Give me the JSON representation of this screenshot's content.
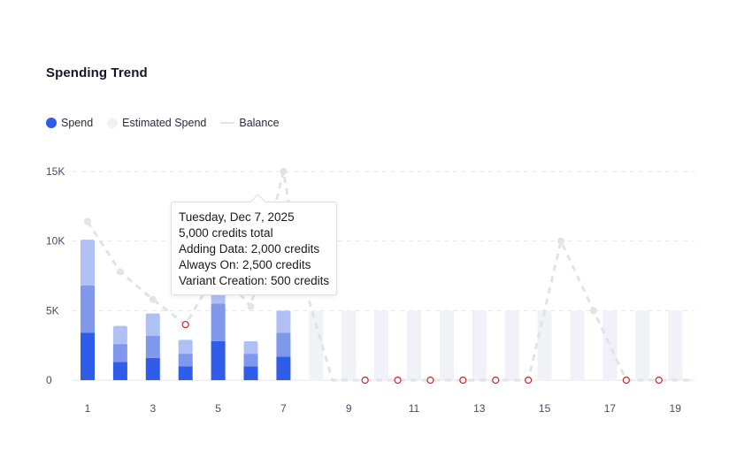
{
  "header": {
    "title": "Spending Trend"
  },
  "legend": {
    "spend": "Spend",
    "estimated": "Estimated Spend",
    "balance": "Balance"
  },
  "tooltip": {
    "date": "Tuesday, Dec 7, 2025",
    "total": "5,000 credits total",
    "adding_data": "Adding Data: 2,000 credits",
    "always_on": "Always On: 2,500 credits",
    "variant_creation": "Variant Creation: 500 credits"
  },
  "colors": {
    "spend_dark": "#2f5ce8",
    "spend_mid": "#7f98ec",
    "spend_light": "#b0c0f4",
    "estimated": "#f1f2f7",
    "balance_line": "#e3e3e6",
    "zero_marker": "#c62828",
    "grid": "#e6e6ea",
    "axis_text": "#4a4a6a"
  },
  "chart_data": {
    "type": "bar",
    "title": "Spending Trend",
    "x": [
      1,
      2,
      3,
      4,
      5,
      6,
      7,
      8,
      9,
      10,
      11,
      12,
      13,
      14,
      15,
      16,
      17,
      18,
      19
    ],
    "x_tick_labels": [
      "1",
      "3",
      "5",
      "7",
      "9",
      "11",
      "13",
      "15",
      "17",
      "19"
    ],
    "y_tick_labels": [
      "0",
      "5K",
      "10K",
      "15K"
    ],
    "ylim": [
      0,
      15000
    ],
    "grid": true,
    "legend_position": "top-left",
    "spend_series": [
      {
        "name": "Spend",
        "x": [
          1,
          2,
          3,
          4,
          5,
          6,
          7
        ],
        "segments": [
          [
            3400,
            3400,
            3300
          ],
          [
            1300,
            1300,
            1300
          ],
          [
            1600,
            1600,
            1600
          ],
          [
            1000,
            900,
            1000
          ],
          [
            2800,
            2700,
            1100
          ],
          [
            1000,
            900,
            900
          ],
          [
            1700,
            1700,
            1600
          ]
        ]
      }
    ],
    "estimated_series": {
      "name": "Estimated Spend",
      "x": [
        8,
        9,
        10,
        11,
        12,
        13,
        14,
        15,
        16,
        17,
        18,
        19
      ],
      "values": [
        5000,
        5000,
        5000,
        5000,
        5000,
        5000,
        5000,
        5000,
        5000,
        5000,
        5000,
        5000
      ]
    },
    "balance_series": {
      "name": "Balance",
      "x": [
        1,
        2,
        3,
        4,
        5,
        6,
        7,
        7.5,
        8.5,
        9.5,
        10.5,
        11.5,
        12.5,
        13.5,
        14.5,
        15.5,
        16.5,
        17.5,
        18.5,
        19.5
      ],
      "values": [
        11400,
        7800,
        5800,
        4000,
        8000,
        5300,
        15000,
        8000,
        0,
        0,
        0,
        0,
        0,
        0,
        0,
        10000,
        5000,
        0,
        0,
        0
      ],
      "zero_markers_x": [
        9.5,
        10.5,
        11.5,
        12.5,
        13.5,
        14.5,
        17.5,
        18.5
      ],
      "marker_x": [
        4
      ]
    }
  }
}
